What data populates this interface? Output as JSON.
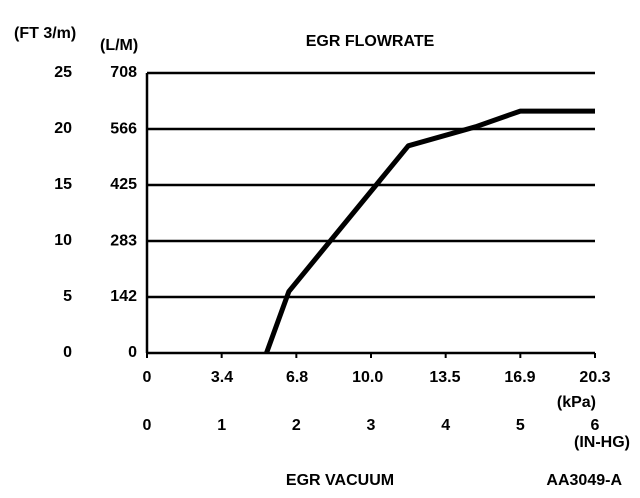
{
  "chart_data": {
    "type": "line",
    "title": "EGR FLOWRATE",
    "y_label": "(FT 3/m)",
    "y2_label": "(L/M)",
    "x_label": "EGR VACUUM",
    "x_unit": "(IN-HG)",
    "x2_unit": "(kPa)",
    "figure_code": "AA3049-A",
    "x": [
      1.6,
      1.9,
      3.5,
      4.4,
      5.0,
      6
    ],
    "series": [
      {
        "color": "#000000",
        "values": [
          0,
          5.5,
          18.5,
          20.2,
          21.6,
          21.6
        ]
      }
    ],
    "xlim": [
      0,
      6
    ],
    "xticks": [
      0,
      1,
      2,
      3,
      4,
      5,
      6
    ],
    "x2lim": [
      0,
      20.3
    ],
    "x2ticks": [
      0,
      3.4,
      6.8,
      {
        "value": 10,
        "label": "10.0"
      },
      13.5,
      16.9,
      20.3
    ],
    "ylim": [
      0,
      25
    ],
    "yticks": [
      0,
      5,
      10,
      15,
      20,
      25
    ],
    "y2lim": [
      0,
      708
    ],
    "y2ticks": [
      0,
      142,
      283,
      425,
      566,
      708
    ],
    "grid": true
  }
}
